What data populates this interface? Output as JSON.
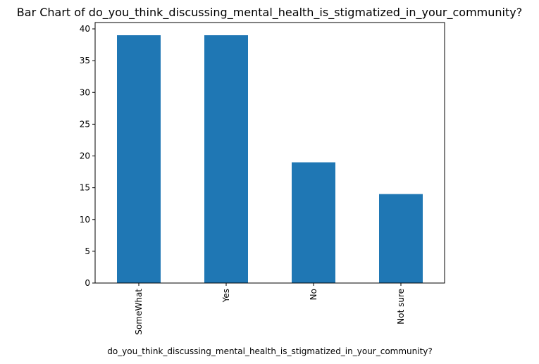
{
  "chart_data": {
    "type": "bar",
    "title": "Bar Chart of do_you_think_discussing_mental_health_is_stigmatized_in_your_community?",
    "xlabel": "do_you_think_discussing_mental_health_is_stigmatized_in_your_community?",
    "ylabel": "",
    "categories": [
      "SomeWhat",
      "Yes",
      "No",
      "Not sure"
    ],
    "values": [
      39,
      39,
      19,
      14
    ],
    "ylim": [
      0,
      41
    ],
    "yticks": [
      0,
      5,
      10,
      15,
      20,
      25,
      30,
      35,
      40
    ],
    "bar_color": "#1f77b4",
    "grid": false,
    "legend": "none"
  }
}
